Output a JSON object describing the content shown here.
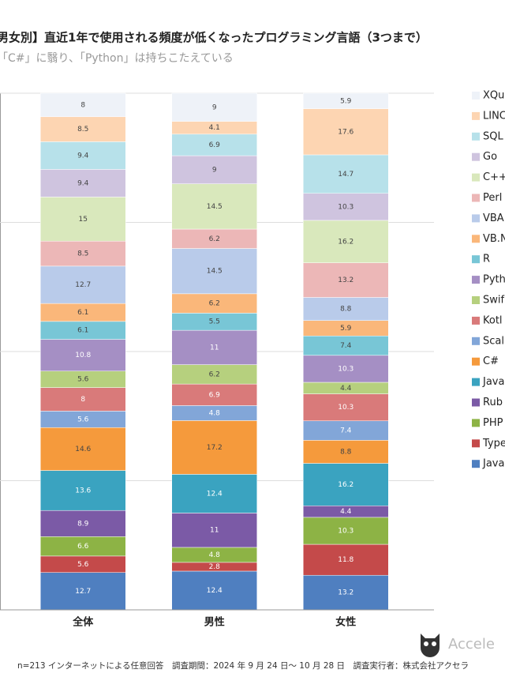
{
  "chart_data": {
    "type": "stacked_bar",
    "title": "男女別】直近1年で使用される頻度が低くなったプログラミング言語（3つまで）",
    "subtitle": "「C#」に翳り、「Python」は持ちこたえている",
    "categories": [
      "全体",
      "男性",
      "女性"
    ],
    "normalize": true,
    "ylim": [
      0,
      100
    ],
    "yticks": [
      0,
      25,
      50,
      75,
      100
    ],
    "grid": true,
    "series": [
      {
        "name": "Java",
        "color": "#4f7fc0",
        "values": [
          12.7,
          12.4,
          13.2
        ]
      },
      {
        "name": "Type",
        "color": "#c44a4a",
        "values": [
          5.6,
          2.8,
          11.8
        ]
      },
      {
        "name": "PHP",
        "color": "#8db345",
        "values": [
          6.6,
          4.8,
          10.3
        ]
      },
      {
        "name": "Rub",
        "color": "#7b5aa6",
        "values": [
          8.9,
          11.0,
          4.4
        ]
      },
      {
        "name": "Java",
        "color": "#3aa3c0",
        "values": [
          13.6,
          12.4,
          16.2
        ]
      },
      {
        "name": "C#",
        "color": "#f59a3c",
        "values": [
          14.6,
          17.2,
          8.8
        ]
      },
      {
        "name": "Scal",
        "color": "#82a6d8",
        "values": [
          5.6,
          4.8,
          7.4
        ]
      },
      {
        "name": "Kotl",
        "color": "#d97a7a",
        "values": [
          8.0,
          6.9,
          10.3
        ]
      },
      {
        "name": "Swif",
        "color": "#b6d07e",
        "values": [
          5.6,
          6.2,
          4.4
        ]
      },
      {
        "name": "Pyth",
        "color": "#a58fc4",
        "values": [
          10.8,
          11.0,
          10.3
        ]
      },
      {
        "name": "R",
        "color": "#78c6d6",
        "values": [
          6.1,
          5.5,
          7.4
        ]
      },
      {
        "name": "VB.N",
        "color": "#fab77a",
        "values": [
          6.1,
          6.2,
          5.9
        ]
      },
      {
        "name": "VBA",
        "color": "#b9cbea",
        "values": [
          12.7,
          14.5,
          8.8
        ]
      },
      {
        "name": "Perl",
        "color": "#ecb7b7",
        "values": [
          8.5,
          6.2,
          13.2
        ]
      },
      {
        "name": "C++",
        "color": "#d9e8bc",
        "values": [
          15.0,
          14.5,
          16.2
        ]
      },
      {
        "name": "Go",
        "color": "#cfc4df",
        "values": [
          9.4,
          9.0,
          10.3
        ]
      },
      {
        "name": "SQL",
        "color": "#b7e1ea",
        "values": [
          9.4,
          6.9,
          14.7
        ]
      },
      {
        "name": "LINC",
        "color": "#fdd5b2",
        "values": [
          8.5,
          4.1,
          17.6
        ]
      },
      {
        "name": "XQu",
        "color": "#eef2f8",
        "values": [
          8.0,
          9.0,
          5.9
        ]
      }
    ],
    "footnote": "n=213 インターネットによる任意回答　調査期間：2024 年 9 月 24 日～ 10 月 28 日　調査実行者：株式会社アクセラ",
    "logo": "Accele"
  }
}
